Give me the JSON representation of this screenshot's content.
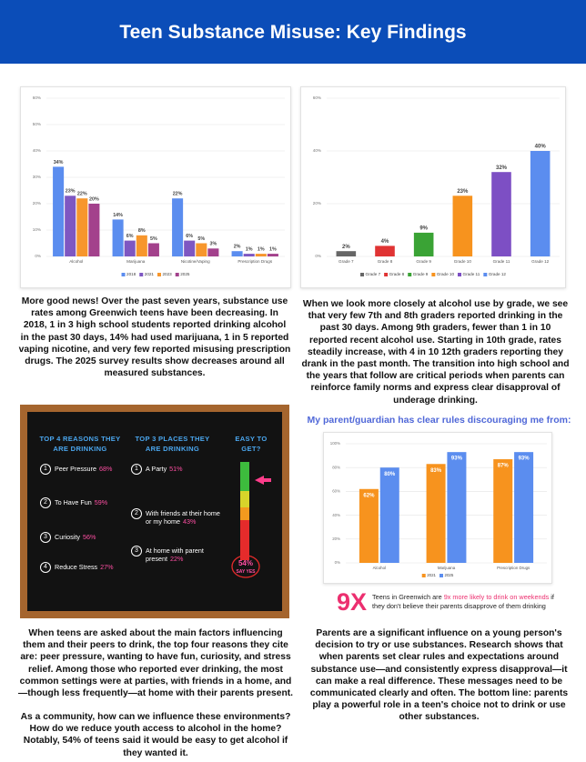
{
  "header": {
    "title": "Teen Substance Misuse: Key Findings"
  },
  "chart_data": [
    {
      "type": "bar",
      "categories": [
        "Alcohol",
        "Marijuana",
        "Nicotine/Vaping",
        "Prescription Drugs"
      ],
      "series": [
        {
          "name": "2018",
          "color": "#5b8def",
          "values": [
            34,
            14,
            22,
            2
          ],
          "value_labels": [
            "34%",
            "14%",
            "22%",
            "2%"
          ]
        },
        {
          "name": "2021",
          "color": "#7e57c2",
          "values": [
            23,
            6,
            6,
            1
          ],
          "value_labels": [
            "23%",
            "6%",
            "6%",
            "1%"
          ]
        },
        {
          "name": "2023",
          "color": "#f7962c",
          "values": [
            22,
            8,
            5,
            1
          ],
          "value_labels": [
            "22%",
            "8%",
            "5%",
            "1%"
          ]
        },
        {
          "name": "2025",
          "color": "#a3418c",
          "values": [
            20,
            5,
            3,
            1
          ],
          "value_labels": [
            "20%",
            "5%",
            "3%",
            "1%"
          ]
        }
      ],
      "ylim": [
        0,
        60
      ],
      "yticks": [
        {
          "value": 0,
          "label": "0%"
        },
        {
          "value": 10,
          "label": "10%"
        },
        {
          "value": 20,
          "label": "20%"
        },
        {
          "value": 30,
          "label": "30%"
        },
        {
          "value": 40,
          "label": "40%"
        },
        {
          "value": 50,
          "label": "50%"
        },
        {
          "value": 60,
          "label": "60%"
        }
      ],
      "grid": true,
      "legend": "bottom"
    },
    {
      "type": "bar",
      "categories": [
        "Grade 7",
        "Grade 8",
        "Grade 9",
        "Grade 10",
        "Grade 11",
        "Grade 12"
      ],
      "values": [
        2,
        4,
        9,
        23,
        32,
        40
      ],
      "value_labels": [
        "2%",
        "4%",
        "9%",
        "23%",
        "32%",
        "40%"
      ],
      "colors": [
        "#666666",
        "#e03333",
        "#3aa335",
        "#f7931e",
        "#7d4fc4",
        "#5b8def"
      ],
      "ylim": [
        0,
        60
      ],
      "yticks": [
        {
          "value": 0,
          "label": "0%"
        },
        {
          "value": 20,
          "label": "20%"
        },
        {
          "value": 40,
          "label": "40%"
        },
        {
          "value": 60,
          "label": "60%"
        }
      ],
      "grid": true,
      "legend": "bottom"
    },
    {
      "type": "bar",
      "title": "My parent/guardian has clear rules discouraging me from:",
      "categories": [
        "Alcohol",
        "Marijuana",
        "Prescription Drugs"
      ],
      "series": [
        {
          "name": "2021",
          "color": "#f7931e",
          "values": [
            62,
            83,
            87
          ],
          "value_labels": [
            "62%",
            "83%",
            "87%"
          ]
        },
        {
          "name": "2025",
          "color": "#5b8def",
          "values": [
            80,
            93,
            93
          ],
          "value_labels": [
            "80%",
            "93%",
            "93%"
          ]
        }
      ],
      "ylim": [
        0,
        100
      ],
      "yticks": [
        {
          "value": 0,
          "label": "0%"
        },
        {
          "value": 20,
          "label": "20%"
        },
        {
          "value": 40,
          "label": "40%"
        },
        {
          "value": 60,
          "label": "60%"
        },
        {
          "value": 80,
          "label": "80%"
        },
        {
          "value": 100,
          "label": "100%"
        }
      ],
      "grid": true,
      "legend": "bottom"
    }
  ],
  "paragraphs": [
    "More good news! Over the past seven years, substance use rates among Greenwich teens have been decreasing. In 2018, 1 in 3 high school students reported drinking alcohol in the past 30 days, 14% had used marijuana, 1 in 5 reported vaping nicotine, and very few reported misusing prescription drugs. The 2025 survey results show decreases around all measured substances.",
    "When we look more closely at alcohol use by grade, we see that very few 7th and 8th graders reported drinking in the past 30 days. Among 9th graders, fewer than 1 in 10 reported recent alcohol use. Starting in 10th grade, rates steadily increase, with 4 in 10 12th graders reporting they drank in the past month. The transition into high school and the years that follow are critical periods when parents can reinforce family norms and express clear disapproval of underage drinking.",
    "When teens are asked about the main factors influencing them and their peers to drink, the top four reasons they cite are: peer pressure, wanting to have fun, curiosity, and stress relief. Among those who reported ever drinking, the most common settings were at parties, with friends in a home, and—though less frequently—at home with their parents present.",
    "As a community, how can we influence these environments? How do we reduce youth access to alcohol in the home? Notably, 54% of teens said it would be easy to get alcohol if they wanted it.",
    "Parents are a significant influence on a young person's decision to try or use substances. Research shows that when parents set clear rules and expectations around substance use—and consistently express disapproval—it can make a real difference. These messages need to be communicated clearly and often. The bottom line: parents play a powerful role in a teen's choice not to drink or use other substances."
  ],
  "chalkboard": {
    "reasons_title": "TOP 4 REASONS THEY ARE DRINKING",
    "reasons": [
      {
        "num": "1",
        "label": "Peer Pressure",
        "pct": "68%"
      },
      {
        "num": "2",
        "label": "To Have Fun",
        "pct": "59%"
      },
      {
        "num": "3",
        "label": "Curiosity",
        "pct": "56%"
      },
      {
        "num": "4",
        "label": "Reduce Stress",
        "pct": "27%"
      }
    ],
    "places_title": "TOP 3 PLACES THEY ARE DRINKING",
    "places": [
      {
        "num": "1",
        "label": "A Party",
        "pct": "51%"
      },
      {
        "num": "2",
        "label": "With friends at their home or my home",
        "pct": "43%"
      },
      {
        "num": "3",
        "label": "At home with parent present",
        "pct": "22%"
      }
    ],
    "easy_title": "EASY TO GET?",
    "easy_pct": "54%",
    "easy_label": "SAY YES"
  },
  "callout": {
    "big": "9X",
    "text_before": "Teens in Greenwich are ",
    "text_highlight": "9x more likely to drink on weekends",
    "text_after": " if they don't believe their parents disapprove of them drinking"
  }
}
